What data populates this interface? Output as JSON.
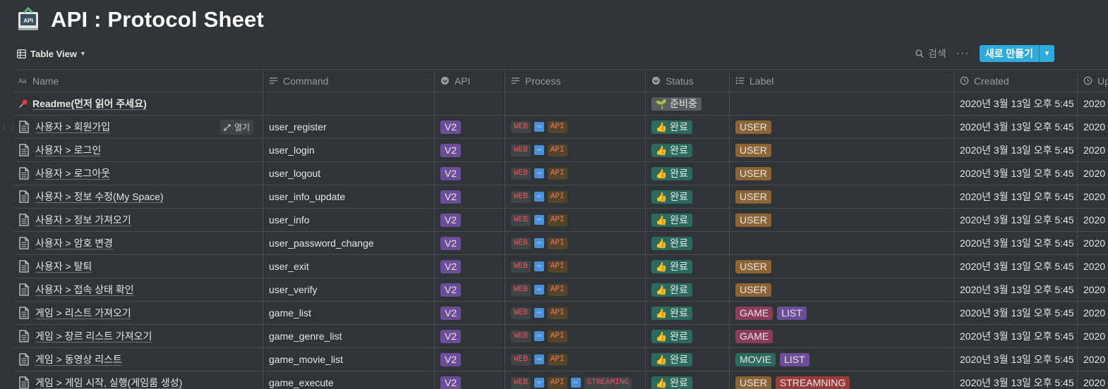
{
  "page": {
    "title": "API : Protocol Sheet",
    "icon": "api-book-icon"
  },
  "toolbar": {
    "view_label": "Table View",
    "search_label": "검색",
    "more_label": "···",
    "new_label": "새로 만들기"
  },
  "columns": {
    "name": "Name",
    "command": "Command",
    "api": "API",
    "process": "Process",
    "status": "Status",
    "label": "Label",
    "created": "Created",
    "updated": "Up"
  },
  "open_label": "열기",
  "rows": [
    {
      "name": "Readme(먼저 읽어 주세요)",
      "pinned": true,
      "command": "",
      "api": "",
      "process": [],
      "status": "준비중",
      "status_icon": "🌱",
      "labels": [],
      "created": "2020년 3월 13일 오후 5:45",
      "updated": "2020"
    },
    {
      "name": "사용자 > 회원가입",
      "command": "user_register",
      "api": "V2",
      "process": [
        "WEB",
        "API"
      ],
      "status": "완료",
      "status_icon": "👍",
      "labels": [
        "USER"
      ],
      "created": "2020년 3월 13일 오후 5:45",
      "updated": "2020"
    },
    {
      "name": "사용자 > 로그인",
      "command": "user_login",
      "api": "V2",
      "process": [
        "WEB",
        "API"
      ],
      "status": "완료",
      "status_icon": "👍",
      "labels": [
        "USER"
      ],
      "created": "2020년 3월 13일 오후 5:45",
      "updated": "2020"
    },
    {
      "name": "사용자 > 로그아웃",
      "command": "user_logout",
      "api": "V2",
      "process": [
        "WEB",
        "API"
      ],
      "status": "완료",
      "status_icon": "👍",
      "labels": [
        "USER"
      ],
      "created": "2020년 3월 13일 오후 5:45",
      "updated": "2020"
    },
    {
      "name": "사용자 > 정보 수정(My Space)",
      "command": "user_info_update",
      "api": "V2",
      "process": [
        "WEB",
        "API"
      ],
      "status": "완료",
      "status_icon": "👍",
      "labels": [
        "USER"
      ],
      "created": "2020년 3월 13일 오후 5:45",
      "updated": "2020"
    },
    {
      "name": "사용자 > 정보 가져오기",
      "command": "user_info",
      "api": "V2",
      "process": [
        "WEB",
        "API"
      ],
      "status": "완료",
      "status_icon": "👍",
      "labels": [
        "USER"
      ],
      "created": "2020년 3월 13일 오후 5:45",
      "updated": "2020"
    },
    {
      "name": "사용자 > 암호 변경",
      "command": "user_password_change",
      "api": "V2",
      "process": [
        "WEB",
        "API"
      ],
      "status": "완료",
      "status_icon": "👍",
      "labels": [],
      "created": "2020년 3월 13일 오후 5:45",
      "updated": "2020"
    },
    {
      "name": "사용자 > 탈퇴",
      "command": "user_exit",
      "api": "V2",
      "process": [
        "WEB",
        "API"
      ],
      "status": "완료",
      "status_icon": "👍",
      "labels": [
        "USER"
      ],
      "created": "2020년 3월 13일 오후 5:45",
      "updated": "2020"
    },
    {
      "name": "사용자 > 접속 상태 확인",
      "command": "user_verify",
      "api": "V2",
      "process": [
        "WEB",
        "API"
      ],
      "status": "완료",
      "status_icon": "👍",
      "labels": [
        "USER"
      ],
      "created": "2020년 3월 13일 오후 5:45",
      "updated": "2020"
    },
    {
      "name": "게임 > 리스트 가져오기",
      "command": "game_list",
      "api": "V2",
      "process": [
        "WEB",
        "API"
      ],
      "status": "완료",
      "status_icon": "👍",
      "labels": [
        "GAME",
        "LIST"
      ],
      "created": "2020년 3월 13일 오후 5:45",
      "updated": "2020"
    },
    {
      "name": "게임 > 장르 리스트 가져오기",
      "command": "game_genre_list",
      "api": "V2",
      "process": [
        "WEB",
        "API"
      ],
      "status": "완료",
      "status_icon": "👍",
      "labels": [
        "GAME"
      ],
      "created": "2020년 3월 13일 오후 5:45",
      "updated": "2020"
    },
    {
      "name": "게임 > 동영상 리스트",
      "command": "game_movie_list",
      "api": "V2",
      "process": [
        "WEB",
        "API"
      ],
      "status": "완료",
      "status_icon": "👍",
      "labels": [
        "MOVIE",
        "LIST"
      ],
      "created": "2020년 3월 13일 오후 5:45",
      "updated": "2020"
    },
    {
      "name": "게임 > 게임 시작, 실행(게임룸 생성)",
      "command": "game_execute",
      "api": "V2",
      "process": [
        "WEB",
        "API",
        "STREAMING"
      ],
      "status": "완료",
      "status_icon": "👍",
      "labels": [
        "USER",
        "STREAMNING"
      ],
      "created": "2020년 3월 13일 오후 5:45",
      "updated": "2020"
    }
  ],
  "colors": {
    "background": "#2f3437",
    "accent": "#2eaadc",
    "tag_v2": "#6b4d99",
    "tag_done": "#2b6a5e",
    "tag_user": "#8d6436",
    "tag_game": "#8d3b5d",
    "tag_streamning": "#9a3c3c"
  }
}
